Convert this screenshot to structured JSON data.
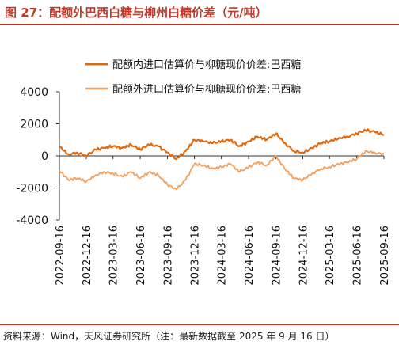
{
  "figure": {
    "title": "图 27：配额外巴西白糖与柳州白糖价差（元/吨）",
    "source": "资料来源：Wind，天风证券研究所（注：最新数据截至 2025 年 9 月 16 日）"
  },
  "chart_data": {
    "type": "line",
    "x": [
      "2022-09-16",
      "2022-10-16",
      "2022-11-16",
      "2022-12-16",
      "2023-01-16",
      "2023-02-16",
      "2023-03-16",
      "2023-04-16",
      "2023-05-16",
      "2023-06-16",
      "2023-07-16",
      "2023-08-16",
      "2023-09-16",
      "2023-10-16",
      "2023-11-16",
      "2023-12-16",
      "2024-01-16",
      "2024-02-16",
      "2024-03-16",
      "2024-04-16",
      "2024-05-16",
      "2024-06-16",
      "2024-07-16",
      "2024-08-16",
      "2024-09-16",
      "2024-10-16",
      "2024-11-16",
      "2024-12-16",
      "2025-01-16",
      "2025-02-16",
      "2025-03-16",
      "2025-04-16",
      "2025-05-16",
      "2025-06-16",
      "2025-07-16",
      "2025-08-16",
      "2025-09-16"
    ],
    "tick_labels": [
      "2022-09-16",
      "2022-12-16",
      "2023-03-16",
      "2023-06-16",
      "2023-09-16",
      "2023-12-16",
      "2024-03-16",
      "2024-06-16",
      "2024-09-16",
      "2024-12-16",
      "2025-03-16",
      "2025-06-16",
      "2025-09-16"
    ],
    "series": [
      {
        "name": "配额内进口估算价与柳糖现价价差:巴西糖",
        "color": "#e06a10",
        "values": [
          600,
          100,
          200,
          0,
          400,
          500,
          600,
          500,
          700,
          400,
          700,
          600,
          200,
          -200,
          300,
          1000,
          900,
          800,
          900,
          1000,
          600,
          900,
          1200,
          1000,
          1400,
          800,
          300,
          200,
          500,
          800,
          900,
          1100,
          1200,
          1400,
          1600,
          1500,
          1300
        ]
      },
      {
        "name": "配额外进口估算价与柳糖现价价差:巴西糖",
        "color": "#f5a05a",
        "values": [
          -900,
          -1500,
          -1400,
          -1600,
          -1200,
          -1000,
          -1100,
          -1300,
          -1000,
          -1400,
          -1000,
          -1200,
          -1800,
          -2100,
          -1500,
          -500,
          -600,
          -800,
          -700,
          -500,
          -1000,
          -700,
          -400,
          -600,
          0,
          -800,
          -1400,
          -1500,
          -1100,
          -800,
          -700,
          -500,
          -400,
          -200,
          300,
          200,
          100
        ]
      }
    ],
    "ylim": [
      -4000,
      4000
    ],
    "yticks": [
      -4000,
      -2000,
      0,
      2000,
      4000
    ],
    "legend_position": "top-center",
    "grid": false
  }
}
